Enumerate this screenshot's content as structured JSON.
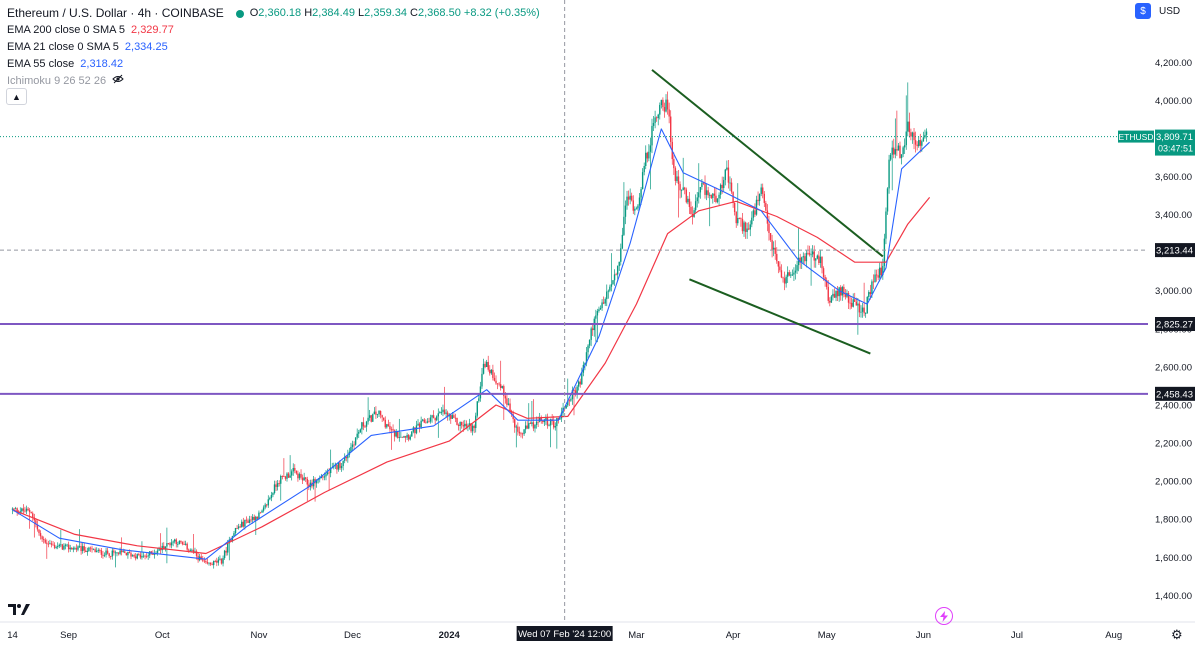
{
  "legend": {
    "title": "Ethereum / U.S. Dollar · 4h · COINBASE",
    "ohlc": {
      "o_label": "O",
      "o": "2,360.18",
      "h_label": "H",
      "h": "2,384.49",
      "l_label": "L",
      "l": "2,359.34",
      "c_label": "C",
      "c": "2,368.50",
      "chg": "+8.32 (+0.35%)"
    },
    "indicators": [
      {
        "name": "EMA 200 close 0 SMA 5",
        "value": "2,329.77",
        "color": "#f23645"
      },
      {
        "name": "EMA 21 close 0 SMA 5",
        "value": "2,334.25",
        "color": "#2962ff"
      },
      {
        "name": "EMA 55 close",
        "value": "2,318.42",
        "color": "#2962ff"
      },
      {
        "name": "Ichimoku 9 26 52 26",
        "value": "",
        "color": "#9598a1"
      }
    ]
  },
  "toolbar": {
    "currency": "USD",
    "currency_icon": "$",
    "collapse_icon": "chevron-up"
  },
  "colors": {
    "up": "#089981",
    "down": "#f23645",
    "ema_red": "#f23645",
    "ema_blue": "#2962ff",
    "trendline": "#1b5e20",
    "hline": "#7e57c2"
  },
  "chart_data": {
    "type": "candlestick",
    "symbol": "ETHUSD",
    "y_ticks": [
      1400,
      1600,
      1800,
      2000,
      2200,
      2400,
      2600,
      2800,
      3000,
      3200,
      3400,
      3600,
      3800,
      4000,
      4200
    ],
    "y_tick_labels": [
      "1,400.00",
      "1,600.00",
      "1,800.00",
      "2,000.00",
      "2,200.00",
      "2,400.00",
      "2,600.00",
      "2,800.00",
      "3,000.00",
      "3,200.00",
      "3,400.00",
      "3,600.00",
      "3,800.00",
      "4,000.00",
      "4,200.00"
    ],
    "ylim": [
      1260,
      4380
    ],
    "x_ticks": [
      {
        "label": "14",
        "t": 0
      },
      {
        "label": "Sep",
        "t": 18
      },
      {
        "label": "Oct",
        "t": 48
      },
      {
        "label": "Nov",
        "t": 79
      },
      {
        "label": "Dec",
        "t": 109
      },
      {
        "label": "2024",
        "t": 140
      },
      {
        "label": "Mar",
        "t": 200
      },
      {
        "label": "Apr",
        "t": 231
      },
      {
        "label": "May",
        "t": 261
      },
      {
        "label": "Jun",
        "t": 292
      },
      {
        "label": "Jul",
        "t": 322
      },
      {
        "label": "Aug",
        "t": 353
      }
    ],
    "xlim": [
      -4,
      364
    ],
    "crosshair": {
      "t": 177,
      "price": 3213.44,
      "price_label": "3,213.44",
      "time_label": "Wed 07 Feb '24   12:00"
    },
    "last_price": {
      "price": 3809.71,
      "label": "3,809.71",
      "countdown": "03:47:51",
      "symbol": "ETHUSD"
    },
    "horizontal_lines": [
      {
        "price": 2825.27,
        "label": "2,825.27"
      },
      {
        "price": 2458.43,
        "label": "2,458.43"
      }
    ],
    "trendlines": [
      {
        "t1": 205,
        "p1": 4160,
        "t2": 279,
        "p2": 3180
      },
      {
        "t1": 217,
        "p1": 3060,
        "t2": 275,
        "p2": 2670
      }
    ],
    "price_path": [
      {
        "t": 0,
        "p": 1850
      },
      {
        "t": 6,
        "p": 1840
      },
      {
        "t": 9,
        "p": 1700
      },
      {
        "t": 13,
        "p": 1660
      },
      {
        "t": 18,
        "p": 1650
      },
      {
        "t": 24,
        "p": 1640
      },
      {
        "t": 30,
        "p": 1620
      },
      {
        "t": 36,
        "p": 1620
      },
      {
        "t": 42,
        "p": 1600
      },
      {
        "t": 47,
        "p": 1640
      },
      {
        "t": 52,
        "p": 1690
      },
      {
        "t": 57,
        "p": 1640
      },
      {
        "t": 62,
        "p": 1560
      },
      {
        "t": 67,
        "p": 1580
      },
      {
        "t": 71,
        "p": 1740
      },
      {
        "t": 75,
        "p": 1790
      },
      {
        "t": 80,
        "p": 1830
      },
      {
        "t": 85,
        "p": 2000
      },
      {
        "t": 90,
        "p": 2050
      },
      {
        "t": 95,
        "p": 1980
      },
      {
        "t": 100,
        "p": 2030
      },
      {
        "t": 106,
        "p": 2100
      },
      {
        "t": 112,
        "p": 2290
      },
      {
        "t": 117,
        "p": 2360
      },
      {
        "t": 122,
        "p": 2250
      },
      {
        "t": 127,
        "p": 2240
      },
      {
        "t": 132,
        "p": 2310
      },
      {
        "t": 138,
        "p": 2360
      },
      {
        "t": 143,
        "p": 2300
      },
      {
        "t": 148,
        "p": 2280
      },
      {
        "t": 151,
        "p": 2630
      },
      {
        "t": 154,
        "p": 2560
      },
      {
        "t": 158,
        "p": 2450
      },
      {
        "t": 162,
        "p": 2240
      },
      {
        "t": 166,
        "p": 2290
      },
      {
        "t": 170,
        "p": 2320
      },
      {
        "t": 174,
        "p": 2300
      },
      {
        "t": 178,
        "p": 2420
      },
      {
        "t": 182,
        "p": 2520
      },
      {
        "t": 186,
        "p": 2820
      },
      {
        "t": 190,
        "p": 2960
      },
      {
        "t": 194,
        "p": 3100
      },
      {
        "t": 197,
        "p": 3500
      },
      {
        "t": 200,
        "p": 3430
      },
      {
        "t": 203,
        "p": 3690
      },
      {
        "t": 206,
        "p": 3900
      },
      {
        "t": 208,
        "p": 4000
      },
      {
        "t": 210,
        "p": 3960
      },
      {
        "t": 212,
        "p": 3630
      },
      {
        "t": 215,
        "p": 3520
      },
      {
        "t": 218,
        "p": 3390
      },
      {
        "t": 221,
        "p": 3540
      },
      {
        "t": 225,
        "p": 3480
      },
      {
        "t": 229,
        "p": 3620
      },
      {
        "t": 232,
        "p": 3370
      },
      {
        "t": 236,
        "p": 3320
      },
      {
        "t": 240,
        "p": 3520
      },
      {
        "t": 243,
        "p": 3260
      },
      {
        "t": 247,
        "p": 3050
      },
      {
        "t": 251,
        "p": 3130
      },
      {
        "t": 255,
        "p": 3200
      },
      {
        "t": 259,
        "p": 3150
      },
      {
        "t": 262,
        "p": 2940
      },
      {
        "t": 266,
        "p": 3010
      },
      {
        "t": 270,
        "p": 2920
      },
      {
        "t": 273,
        "p": 2880
      },
      {
        "t": 276,
        "p": 3060
      },
      {
        "t": 279,
        "p": 3120
      },
      {
        "t": 281,
        "p": 3700
      },
      {
        "t": 283,
        "p": 3760
      },
      {
        "t": 285,
        "p": 3700
      },
      {
        "t": 287,
        "p": 3890
      },
      {
        "t": 289,
        "p": 3780
      },
      {
        "t": 291,
        "p": 3760
      },
      {
        "t": 293,
        "p": 3810
      }
    ],
    "ema_red": [
      {
        "t": 0,
        "p": 1850
      },
      {
        "t": 20,
        "p": 1720
      },
      {
        "t": 40,
        "p": 1660
      },
      {
        "t": 62,
        "p": 1620
      },
      {
        "t": 80,
        "p": 1760
      },
      {
        "t": 100,
        "p": 1940
      },
      {
        "t": 120,
        "p": 2100
      },
      {
        "t": 140,
        "p": 2210
      },
      {
        "t": 155,
        "p": 2400
      },
      {
        "t": 165,
        "p": 2330
      },
      {
        "t": 178,
        "p": 2340
      },
      {
        "t": 190,
        "p": 2620
      },
      {
        "t": 200,
        "p": 2930
      },
      {
        "t": 210,
        "p": 3300
      },
      {
        "t": 220,
        "p": 3420
      },
      {
        "t": 232,
        "p": 3470
      },
      {
        "t": 245,
        "p": 3390
      },
      {
        "t": 258,
        "p": 3280
      },
      {
        "t": 270,
        "p": 3150
      },
      {
        "t": 280,
        "p": 3150
      },
      {
        "t": 287,
        "p": 3350
      },
      {
        "t": 294,
        "p": 3490
      }
    ],
    "ema_blue": [
      {
        "t": 0,
        "p": 1850
      },
      {
        "t": 15,
        "p": 1700
      },
      {
        "t": 35,
        "p": 1640
      },
      {
        "t": 62,
        "p": 1590
      },
      {
        "t": 75,
        "p": 1760
      },
      {
        "t": 95,
        "p": 1970
      },
      {
        "t": 115,
        "p": 2240
      },
      {
        "t": 135,
        "p": 2290
      },
      {
        "t": 152,
        "p": 2480
      },
      {
        "t": 162,
        "p": 2320
      },
      {
        "t": 175,
        "p": 2320
      },
      {
        "t": 188,
        "p": 2760
      },
      {
        "t": 198,
        "p": 3250
      },
      {
        "t": 208,
        "p": 3850
      },
      {
        "t": 215,
        "p": 3620
      },
      {
        "t": 228,
        "p": 3520
      },
      {
        "t": 240,
        "p": 3420
      },
      {
        "t": 252,
        "p": 3160
      },
      {
        "t": 265,
        "p": 3000
      },
      {
        "t": 274,
        "p": 2930
      },
      {
        "t": 280,
        "p": 3120
      },
      {
        "t": 285,
        "p": 3640
      },
      {
        "t": 294,
        "p": 3780
      }
    ]
  }
}
